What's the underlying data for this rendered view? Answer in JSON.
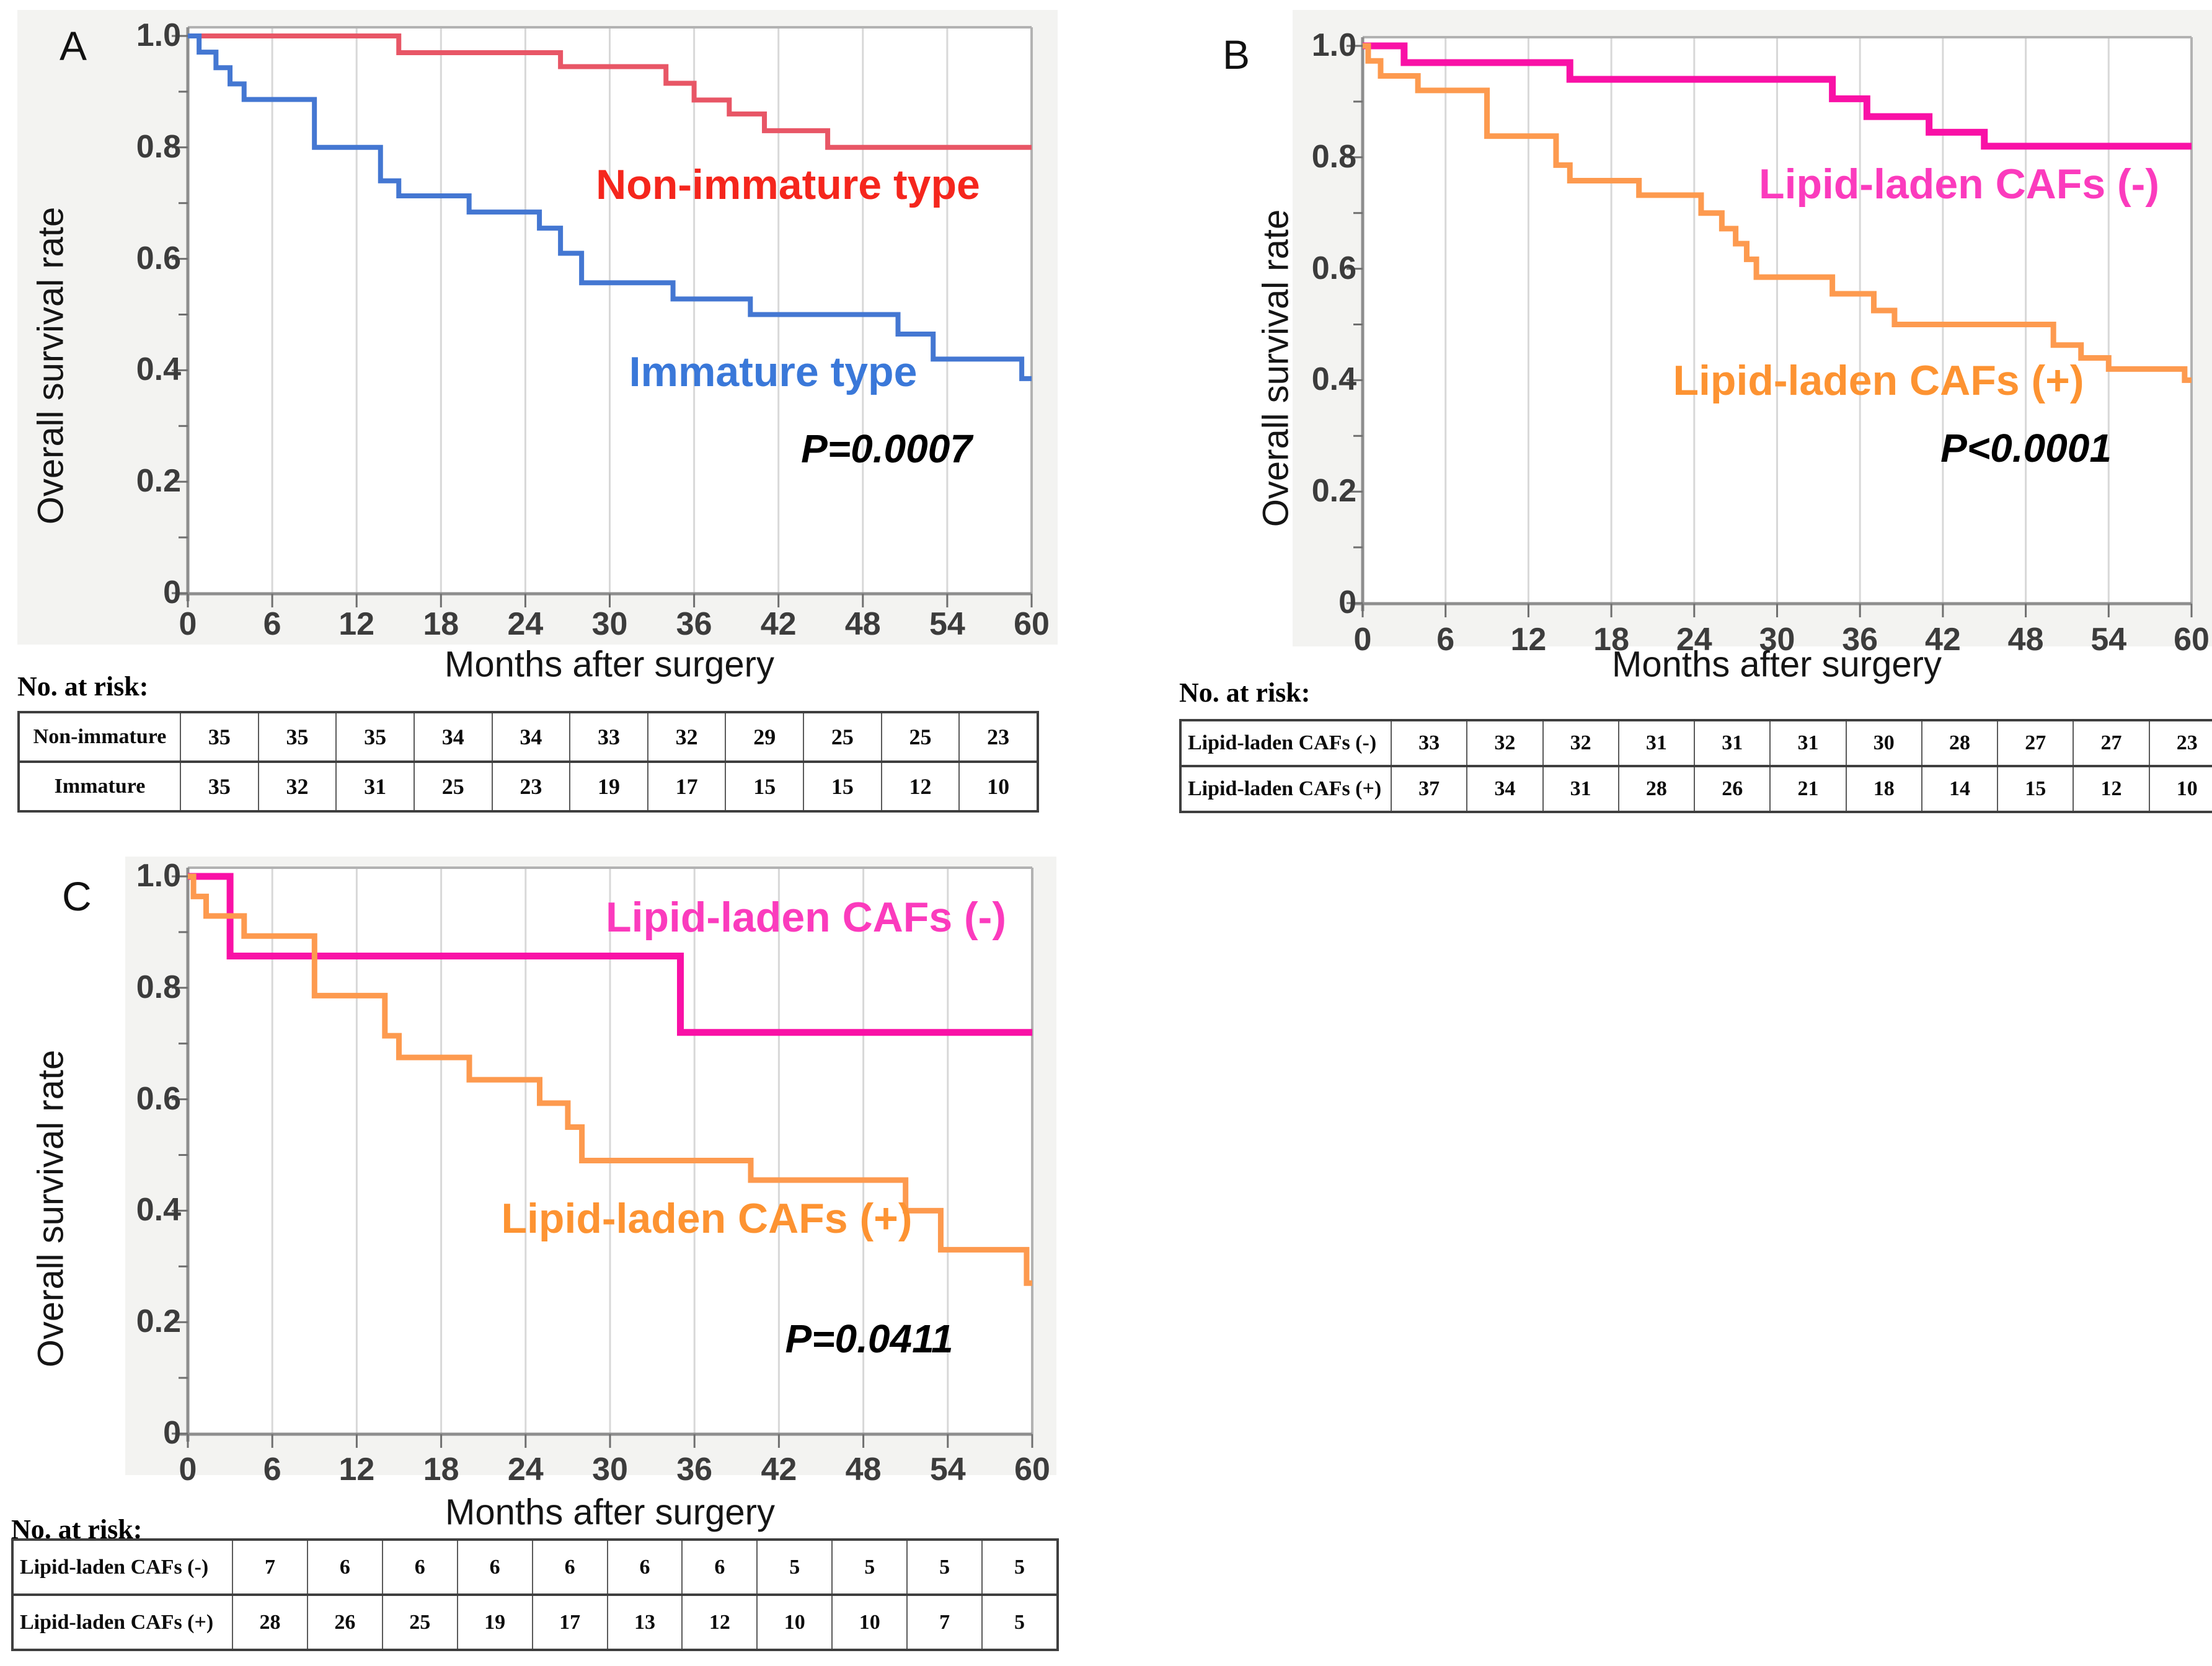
{
  "figure": {
    "background": "#ffffff",
    "panel_background": "#f3f3f1",
    "grid_color": "#d8d8d8",
    "frame_color": "#b2b2b2",
    "axis_color": "#8e8e8e",
    "tick_color": "#6f6f6f",
    "tick_text_color": "#3c3c3c",
    "table_border_color": "#3f3f3f"
  },
  "chart_data": [
    {
      "panel": "A",
      "type": "line",
      "subtype": "kaplan_meier_step",
      "xlabel": "Months after surgery",
      "ylabel": "Overall survival rate",
      "xlim": [
        0,
        60
      ],
      "ylim": [
        0,
        1.0
      ],
      "xticks": [
        "0",
        "6",
        "12",
        "18",
        "24",
        "30",
        "36",
        "42",
        "48",
        "54",
        "60"
      ],
      "yticks": [
        {
          "v": 1.0,
          "label": "1.0"
        },
        {
          "v": 0.8,
          "label": "0.8"
        },
        {
          "v": 0.6,
          "label": "0.6"
        },
        {
          "v": 0.4,
          "label": "0.4"
        },
        {
          "v": 0.2,
          "label": "0.2"
        },
        {
          "v": 0.0,
          "label": "0"
        }
      ],
      "grid": "vertical gridlines every 6 months",
      "legend_position": "labels annotated on plot",
      "pvalue": "P=0.0007",
      "series": [
        {
          "name": "Non-immature type",
          "line_color": "#e85666",
          "label_color": "#f5261d",
          "points": [
            [
              0,
              1.0
            ],
            [
              15,
              0.97
            ],
            [
              26.5,
              0.945
            ],
            [
              34,
              0.915
            ],
            [
              36,
              0.885
            ],
            [
              38.5,
              0.86
            ],
            [
              41,
              0.83
            ],
            [
              45.5,
              0.8
            ],
            [
              60,
              0.8
            ]
          ]
        },
        {
          "name": "Immature type",
          "line_color": "#4477d2",
          "label_color": "#3a78d9",
          "points": [
            [
              0,
              1.0
            ],
            [
              0.8,
              0.971
            ],
            [
              2,
              0.943
            ],
            [
              3,
              0.914
            ],
            [
              4,
              0.886
            ],
            [
              9,
              0.8
            ],
            [
              13.7,
              0.74
            ],
            [
              15,
              0.713
            ],
            [
              20,
              0.684
            ],
            [
              25,
              0.655
            ],
            [
              26.5,
              0.61
            ],
            [
              28,
              0.557
            ],
            [
              34.5,
              0.528
            ],
            [
              40,
              0.5
            ],
            [
              50.5,
              0.465
            ],
            [
              53,
              0.42
            ],
            [
              59.3,
              0.385
            ],
            [
              60,
              0.385
            ]
          ]
        }
      ],
      "risk_table": {
        "title": "No. at risk:",
        "rows": [
          {
            "label": "Non-immature",
            "values": [
              "35",
              "35",
              "35",
              "34",
              "34",
              "33",
              "32",
              "29",
              "25",
              "25",
              "23"
            ]
          },
          {
            "label": "Immature",
            "values": [
              "35",
              "32",
              "31",
              "25",
              "23",
              "19",
              "17",
              "15",
              "15",
              "12",
              "10"
            ]
          }
        ]
      }
    },
    {
      "panel": "B",
      "type": "line",
      "subtype": "kaplan_meier_step",
      "xlabel": "Months after surgery",
      "ylabel": "Overall survival rate",
      "xlim": [
        0,
        60
      ],
      "ylim": [
        0,
        1.0
      ],
      "xticks": [
        "0",
        "6",
        "12",
        "18",
        "24",
        "30",
        "36",
        "42",
        "48",
        "54",
        "60"
      ],
      "yticks": [
        {
          "v": 1.0,
          "label": "1.0"
        },
        {
          "v": 0.8,
          "label": "0.8"
        },
        {
          "v": 0.6,
          "label": "0.6"
        },
        {
          "v": 0.4,
          "label": "0.4"
        },
        {
          "v": 0.2,
          "label": "0.2"
        },
        {
          "v": 0.0,
          "label": "0"
        }
      ],
      "grid": "vertical gridlines every 6 months",
      "legend_position": "labels annotated on plot",
      "pvalue": "P<0.0001",
      "series": [
        {
          "name": "Lipid-laden CAFs (-)",
          "line_color": "#f911a6",
          "label_color": "#fb3bbd",
          "points": [
            [
              0,
              1.0
            ],
            [
              3,
              0.97
            ],
            [
              15,
              0.94
            ],
            [
              34,
              0.905
            ],
            [
              36.5,
              0.873
            ],
            [
              41,
              0.845
            ],
            [
              45,
              0.82
            ],
            [
              60,
              0.82
            ]
          ]
        },
        {
          "name": "Lipid-laden CAFs (+)",
          "line_color": "#fd9a4f",
          "label_color": "#fd9332",
          "points": [
            [
              0,
              1.0
            ],
            [
              0.4,
              0.973
            ],
            [
              1.3,
              0.946
            ],
            [
              4,
              0.92
            ],
            [
              9,
              0.838
            ],
            [
              14,
              0.786
            ],
            [
              15,
              0.758
            ],
            [
              20,
              0.732
            ],
            [
              24.5,
              0.7
            ],
            [
              26,
              0.672
            ],
            [
              27,
              0.645
            ],
            [
              27.8,
              0.617
            ],
            [
              28.5,
              0.585
            ],
            [
              34,
              0.555
            ],
            [
              37,
              0.525
            ],
            [
              38.5,
              0.5
            ],
            [
              50,
              0.463
            ],
            [
              52,
              0.44
            ],
            [
              54,
              0.42
            ],
            [
              59.5,
              0.4
            ],
            [
              60,
              0.4
            ]
          ]
        }
      ],
      "risk_table": {
        "title": "No. at risk:",
        "rows": [
          {
            "label": "Lipid-laden CAFs (-)",
            "values": [
              "33",
              "32",
              "32",
              "31",
              "31",
              "31",
              "30",
              "28",
              "27",
              "27",
              "23"
            ]
          },
          {
            "label": "Lipid-laden CAFs (+)",
            "values": [
              "37",
              "34",
              "31",
              "28",
              "26",
              "21",
              "18",
              "14",
              "15",
              "12",
              "10"
            ]
          }
        ]
      }
    },
    {
      "panel": "C",
      "type": "line",
      "subtype": "kaplan_meier_step",
      "xlabel": "Months after surgery",
      "ylabel": "Overall survival rate",
      "xlim": [
        0,
        60
      ],
      "ylim": [
        0,
        1.0
      ],
      "xticks": [
        "0",
        "6",
        "12",
        "18",
        "24",
        "30",
        "36",
        "42",
        "48",
        "54",
        "60"
      ],
      "yticks": [
        {
          "v": 1.0,
          "label": "1.0"
        },
        {
          "v": 0.8,
          "label": "0.8"
        },
        {
          "v": 0.6,
          "label": "0.6"
        },
        {
          "v": 0.4,
          "label": "0.4"
        },
        {
          "v": 0.2,
          "label": "0.2"
        },
        {
          "v": 0.0,
          "label": "0"
        }
      ],
      "grid": "vertical gridlines every 6 months",
      "legend_position": "labels annotated on plot",
      "pvalue": "P=0.0411",
      "series": [
        {
          "name": "Lipid-laden CAFs (-)",
          "line_color": "#f911a6",
          "label_color": "#fb3bbd",
          "points": [
            [
              0,
              1.0
            ],
            [
              3,
              0.857
            ],
            [
              35,
              0.72
            ],
            [
              60,
              0.72
            ]
          ]
        },
        {
          "name": "Lipid-laden CAFs (+)",
          "line_color": "#fd9a4f",
          "label_color": "#fd9332",
          "points": [
            [
              0,
              1.0
            ],
            [
              0.4,
              0.964
            ],
            [
              1.3,
              0.929
            ],
            [
              4,
              0.893
            ],
            [
              9,
              0.786
            ],
            [
              14,
              0.714
            ],
            [
              15,
              0.675
            ],
            [
              20,
              0.635
            ],
            [
              25,
              0.593
            ],
            [
              27,
              0.55
            ],
            [
              28,
              0.49
            ],
            [
              40,
              0.455
            ],
            [
              51,
              0.4
            ],
            [
              53.5,
              0.33
            ],
            [
              59.6,
              0.27
            ],
            [
              60,
              0.27
            ]
          ]
        }
      ],
      "risk_table": {
        "title": "No. at risk:",
        "rows": [
          {
            "label": "Lipid-laden CAFs (-)",
            "values": [
              "7",
              "6",
              "6",
              "6",
              "6",
              "6",
              "6",
              "5",
              "5",
              "5",
              "5"
            ]
          },
          {
            "label": "Lipid-laden CAFs (+)",
            "values": [
              "28",
              "26",
              "25",
              "19",
              "17",
              "13",
              "12",
              "10",
              "10",
              "7",
              "5"
            ]
          }
        ]
      }
    }
  ]
}
